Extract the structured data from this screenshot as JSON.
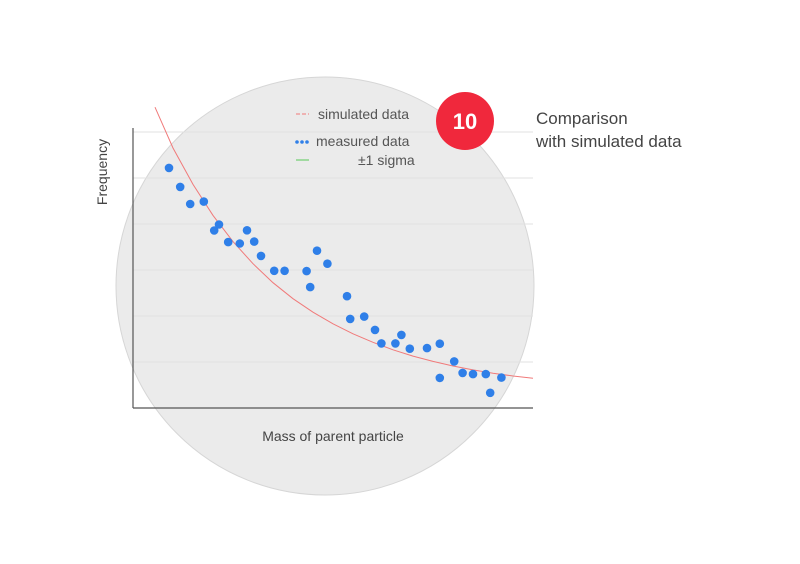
{
  "badge": {
    "number": "10",
    "color": "#f0283c"
  },
  "caption": {
    "line1": "Comparison",
    "line2": "with simulated data"
  },
  "colors": {
    "measured": "#2f7fe8",
    "simulated": "#f07a7a",
    "sigma": "#57c957",
    "circle_fill": "#ebebeb",
    "axis": "#555555",
    "grid": "#e2e2e2"
  },
  "chart_data": {
    "type": "scatter",
    "title": "",
    "xlabel": "Mass of parent particle",
    "ylabel": "Frequency",
    "xlim": [
      0,
      100
    ],
    "ylim": [
      0,
      100
    ],
    "grid": true,
    "legend_position": "top-right",
    "legend": [
      {
        "key": "simulated",
        "label": "simulated data",
        "symbol": "dashed-line"
      },
      {
        "key": "measured",
        "label": "measured data",
        "symbol": "dots"
      },
      {
        "key": "sigma",
        "label": "±1 sigma",
        "symbol": "line"
      }
    ],
    "series": [
      {
        "name": "measured data",
        "kind": "points",
        "points": [
          [
            9,
            87
          ],
          [
            11.8,
            80.1
          ],
          [
            14.3,
            73.9
          ],
          [
            17.7,
            74.8
          ],
          [
            20.3,
            64.3
          ],
          [
            21.5,
            66.5
          ],
          [
            23.8,
            60.1
          ],
          [
            26.7,
            59.6
          ],
          [
            28.5,
            64.4
          ],
          [
            30.3,
            60.3
          ],
          [
            32,
            55.1
          ],
          [
            35.3,
            49.7
          ],
          [
            37.9,
            49.7
          ],
          [
            43.4,
            49.6
          ],
          [
            46,
            57
          ],
          [
            44.3,
            43.8
          ],
          [
            48.6,
            52.3
          ],
          [
            53.5,
            40.5
          ],
          [
            54.3,
            32.3
          ],
          [
            57.8,
            33.1
          ],
          [
            60.5,
            28.3
          ],
          [
            62.1,
            23.4
          ],
          [
            65.6,
            23.4
          ],
          [
            67.1,
            26.5
          ],
          [
            69.2,
            21.5
          ],
          [
            73.5,
            21.7
          ],
          [
            76.7,
            23.3
          ],
          [
            76.7,
            10.9
          ],
          [
            80.3,
            16.9
          ],
          [
            82.4,
            12.7
          ],
          [
            85,
            12.3
          ],
          [
            88.2,
            12.3
          ],
          [
            89.3,
            5.5
          ],
          [
            92.1,
            11
          ]
        ]
      },
      {
        "name": "simulated data",
        "kind": "curve",
        "points": [
          [
            5.5,
            109
          ],
          [
            10,
            94.2
          ],
          [
            15,
            81
          ],
          [
            20,
            69.8
          ],
          [
            25,
            60.3
          ],
          [
            30,
            52.3
          ],
          [
            35,
            45.4
          ],
          [
            40,
            39.6
          ],
          [
            45,
            34.7
          ],
          [
            50,
            30.5
          ],
          [
            55,
            26.9
          ],
          [
            60,
            23.8
          ],
          [
            65,
            21.1
          ],
          [
            70,
            18.8
          ],
          [
            75,
            16.9
          ],
          [
            80,
            15.2
          ],
          [
            85,
            13.8
          ],
          [
            90,
            12.6
          ],
          [
            95,
            11.6
          ],
          [
            100,
            10.8
          ]
        ]
      }
    ]
  }
}
